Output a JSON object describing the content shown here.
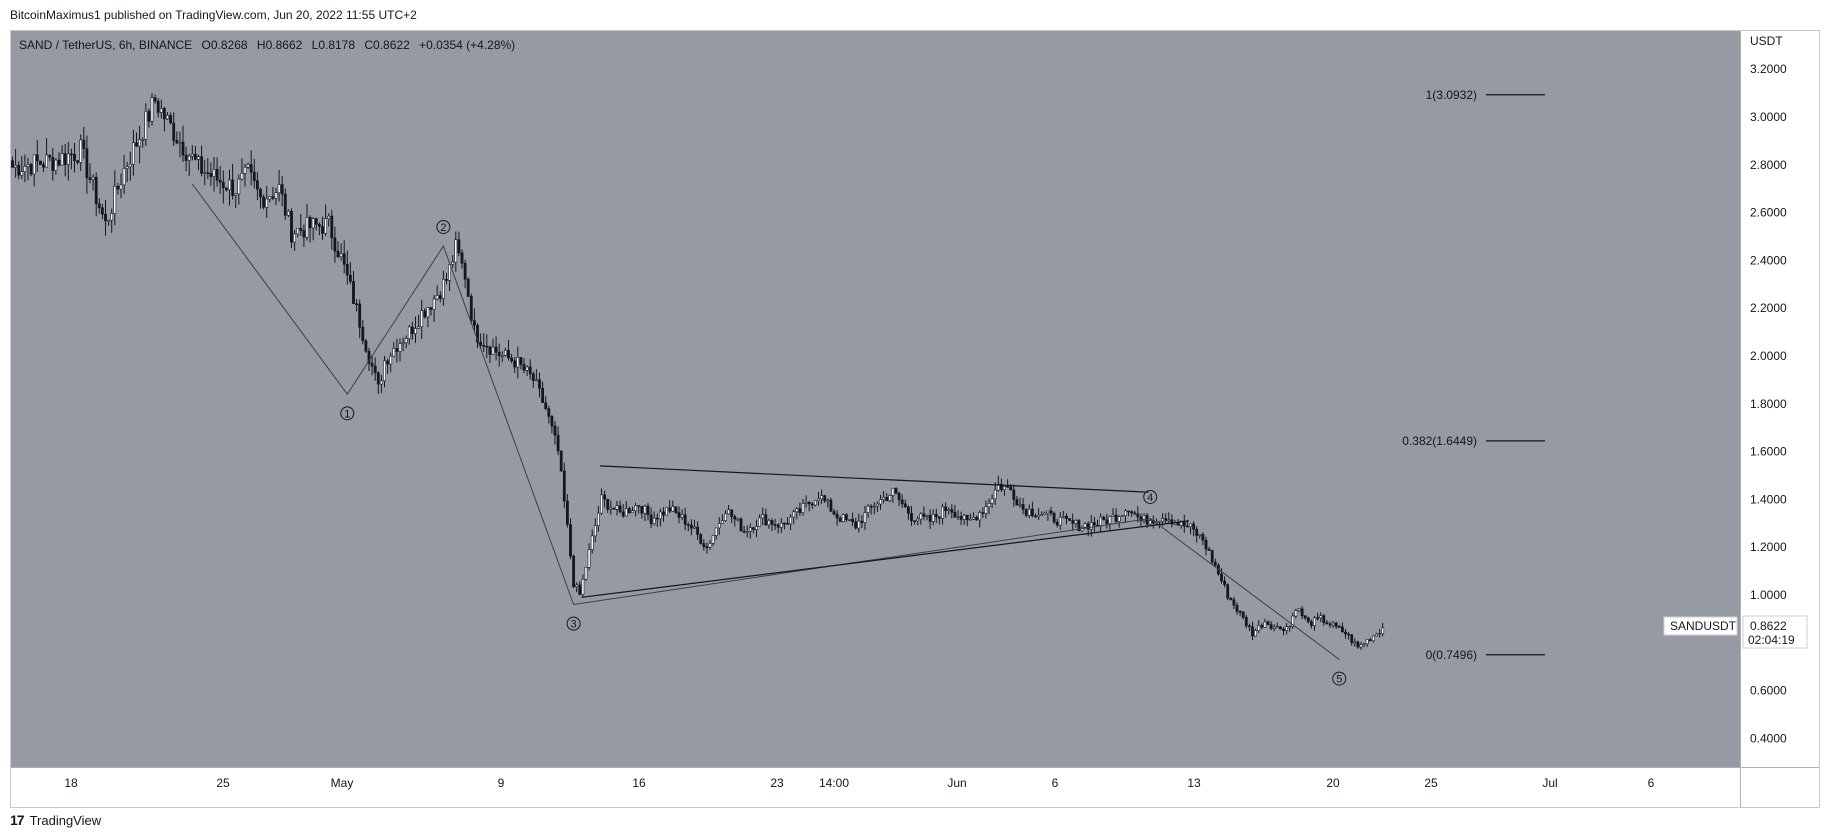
{
  "header": {
    "text": "BitcoinMaximus1 published on TradingView.com, Jun 20, 2022 11:55 UTC+2"
  },
  "legend": {
    "symbol": "SAND / TetherUS, 6h, BINANCE",
    "o_label": "O",
    "o": "0.8268",
    "h_label": "H",
    "h": "0.8662",
    "l_label": "L",
    "l": "0.8178",
    "c_label": "C",
    "c": "0.8622",
    "change": "+0.0354 (+4.28%)"
  },
  "footer": {
    "logo": "17",
    "brand": "TradingView"
  },
  "price_label": {
    "symbol": "SANDUSDT",
    "price": "0.8622",
    "countdown": "02:04:19"
  },
  "colors": {
    "background": "#959aa3",
    "candle": "#131722",
    "line": "#131722",
    "price_tag": "#ffffff"
  },
  "chart_data": {
    "type": "candlestick",
    "y_axis": {
      "unit": "USDT",
      "ticks": [
        "3.2000",
        "3.0000",
        "2.8000",
        "2.6000",
        "2.4000",
        "2.2000",
        "2.0000",
        "1.8000",
        "1.6000",
        "1.4000",
        "1.2000",
        "1.0000",
        "0.8000",
        "0.6000",
        "0.4000"
      ],
      "range": [
        0.28,
        3.36
      ]
    },
    "x_axis": {
      "ticks": [
        "18",
        "25",
        "May",
        "9",
        "16",
        "23",
        "14:00",
        "Jun",
        "6",
        "13",
        "20",
        "25",
        "Jul",
        "6"
      ]
    },
    "close_path": [
      [
        0,
        2.79
      ],
      [
        14,
        2.82
      ],
      [
        22,
        2.86
      ],
      [
        30,
        2.55
      ],
      [
        36,
        2.78
      ],
      [
        42,
        2.95
      ],
      [
        46,
        3.07
      ],
      [
        50,
        2.98
      ],
      [
        54,
        2.9
      ],
      [
        60,
        2.79
      ],
      [
        66,
        2.74
      ],
      [
        72,
        2.7
      ],
      [
        76,
        2.76
      ],
      [
        80,
        2.66
      ],
      [
        86,
        2.7
      ],
      [
        90,
        2.52
      ],
      [
        96,
        2.54
      ],
      [
        102,
        2.55
      ],
      [
        106,
        2.41
      ],
      [
        110,
        2.24
      ],
      [
        114,
        2.05
      ],
      [
        118,
        1.86
      ],
      [
        120,
        1.98
      ],
      [
        124,
        2.05
      ],
      [
        128,
        2.1
      ],
      [
        132,
        2.18
      ],
      [
        136,
        2.24
      ],
      [
        140,
        2.32
      ],
      [
        143,
        2.45
      ],
      [
        146,
        2.34
      ],
      [
        149,
        2.1
      ],
      [
        154,
        2.04
      ],
      [
        158,
        2.0
      ],
      [
        162,
        1.98
      ],
      [
        168,
        1.9
      ],
      [
        172,
        1.78
      ],
      [
        176,
        1.6
      ],
      [
        179,
        1.28
      ],
      [
        181,
        1.05
      ],
      [
        183,
        1.0
      ],
      [
        186,
        1.18
      ],
      [
        190,
        1.4
      ],
      [
        196,
        1.34
      ],
      [
        202,
        1.38
      ],
      [
        206,
        1.32
      ],
      [
        212,
        1.36
      ],
      [
        218,
        1.3
      ],
      [
        224,
        1.2
      ],
      [
        230,
        1.36
      ],
      [
        236,
        1.27
      ],
      [
        242,
        1.32
      ],
      [
        248,
        1.29
      ],
      [
        254,
        1.35
      ],
      [
        260,
        1.42
      ],
      [
        266,
        1.33
      ],
      [
        272,
        1.29
      ],
      [
        278,
        1.38
      ],
      [
        284,
        1.43
      ],
      [
        290,
        1.33
      ],
      [
        296,
        1.31
      ],
      [
        302,
        1.37
      ],
      [
        308,
        1.3
      ],
      [
        314,
        1.37
      ],
      [
        318,
        1.46
      ],
      [
        322,
        1.44
      ],
      [
        326,
        1.36
      ],
      [
        332,
        1.34
      ],
      [
        338,
        1.31
      ],
      [
        344,
        1.29
      ],
      [
        350,
        1.3
      ],
      [
        356,
        1.33
      ],
      [
        360,
        1.37
      ],
      [
        364,
        1.31
      ],
      [
        368,
        1.32
      ],
      [
        372,
        1.33
      ],
      [
        376,
        1.3
      ],
      [
        380,
        1.28
      ],
      [
        384,
        1.23
      ],
      [
        388,
        1.12
      ],
      [
        392,
        1.0
      ],
      [
        396,
        0.92
      ],
      [
        400,
        0.84
      ],
      [
        404,
        0.89
      ],
      [
        408,
        0.86
      ],
      [
        412,
        0.87
      ],
      [
        414,
        0.95
      ],
      [
        418,
        0.88
      ],
      [
        422,
        0.9
      ],
      [
        426,
        0.87
      ],
      [
        430,
        0.84
      ],
      [
        434,
        0.78
      ],
      [
        438,
        0.82
      ],
      [
        442,
        0.86
      ]
    ],
    "wave_labels": [
      {
        "label": "1",
        "x": 108,
        "y": 1.76
      },
      {
        "label": "2",
        "x": 139,
        "y": 2.54
      },
      {
        "label": "3",
        "x": 181,
        "y": 0.88
      },
      {
        "label": "4",
        "x": 367,
        "y": 1.41
      },
      {
        "label": "5",
        "x": 428,
        "y": 0.65
      }
    ],
    "wave_path": [
      [
        58,
        2.72
      ],
      [
        108,
        1.84
      ],
      [
        139,
        2.46
      ],
      [
        181,
        0.96
      ],
      [
        367,
        1.32
      ],
      [
        428,
        0.73
      ]
    ],
    "triangle": {
      "upper": [
        [
          190,
          1.54
        ],
        [
          367,
          1.43
        ]
      ],
      "lower": [
        [
          184,
          0.99
        ],
        [
          380,
          1.31
        ]
      ]
    },
    "fib_levels": [
      {
        "label": "1(3.0932)",
        "value": 3.0932
      },
      {
        "label": "0.382(1.6449)",
        "value": 1.6449
      },
      {
        "label": "0(0.7496)",
        "value": 0.7496
      }
    ],
    "last_price": 0.8622
  }
}
